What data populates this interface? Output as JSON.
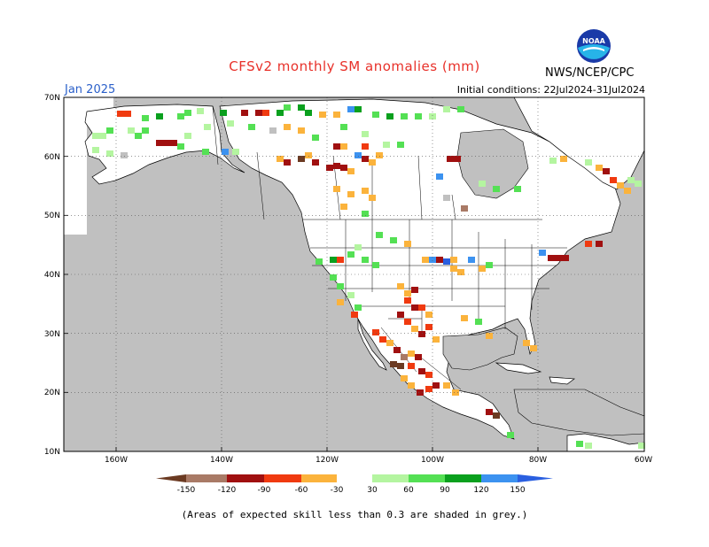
{
  "title": "CFSv2 monthly SM anomalies (mm)",
  "forecast_month": "Jan 2025",
  "initial_conditions": "Initial conditions: 22Jul2024-31Jul2024",
  "agency": "NWS/NCEP/CPC",
  "logo_text": "NOAA",
  "footnote": "(Areas of expected skill less than 0.3 are shaded in grey.)",
  "colors": {
    "skill_mask": "#c0c0c0",
    "ocean_and_no_anomaly": "#ffffff",
    "outline": "#000000"
  },
  "axes": {
    "lon_labels": [
      "160W",
      "140W",
      "120W",
      "100W",
      "80W",
      "60W"
    ],
    "lat_labels": [
      "70N",
      "60N",
      "50N",
      "40N",
      "30N",
      "20N",
      "10N"
    ]
  },
  "colorbar": {
    "labels": [
      "-150",
      "-120",
      "-90",
      "-60",
      "-30",
      "30",
      "60",
      "90",
      "120",
      "150"
    ],
    "bins": [
      {
        "range": "< -150",
        "color": "#6b3a22"
      },
      {
        "range": "-150 to -120",
        "color": "#a97a66"
      },
      {
        "range": "-120 to -90",
        "color": "#a01010"
      },
      {
        "range": "-90 to -60",
        "color": "#f03a10"
      },
      {
        "range": "-60 to -30",
        "color": "#fbb33c"
      },
      {
        "range": "-30 to 30",
        "color": "#ffffff"
      },
      {
        "range": "30 to 60",
        "color": "#b4f5a0"
      },
      {
        "range": "60 to 90",
        "color": "#54e054"
      },
      {
        "range": "90 to 120",
        "color": "#0aa01e"
      },
      {
        "range": "120 to 150",
        "color": "#3c92f0"
      },
      {
        "range": "> 150",
        "color": "#2a5fe0"
      }
    ]
  }
}
